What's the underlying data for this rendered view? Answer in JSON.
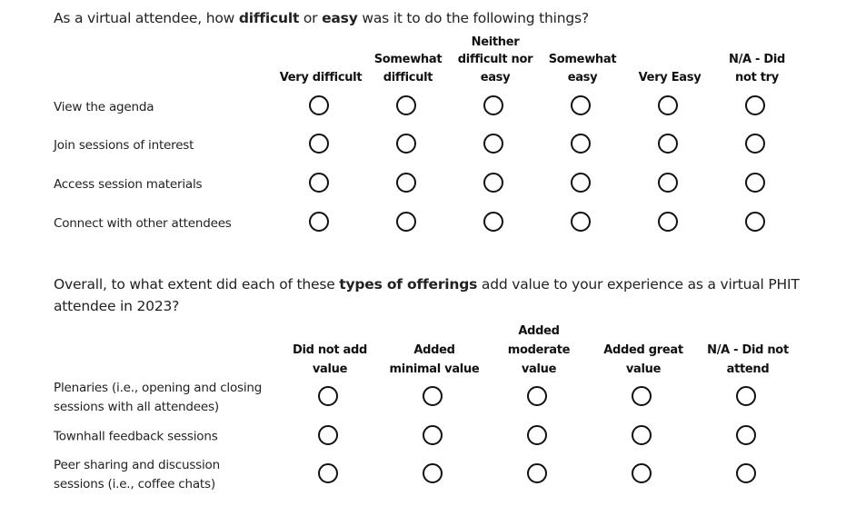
{
  "q1": {
    "text_before": "As a virtual attendee, how ",
    "bold1": "difficult",
    "text_mid": " or ",
    "bold2": "easy",
    "text_after": " was it to do the following things?",
    "columns": [
      [
        "Very difficult"
      ],
      [
        "Somewhat",
        "difficult"
      ],
      [
        "Neither",
        "difficult nor",
        "easy"
      ],
      [
        "Somewhat",
        "easy"
      ],
      [
        "Very Easy"
      ],
      [
        "N/A - Did",
        "not try"
      ]
    ],
    "rows": [
      "View the agenda",
      "Join sessions of interest",
      "Access session materials",
      "Connect with other attendees"
    ]
  },
  "q2": {
    "text_before": "Overall, to what extent did each of these ",
    "bold1": "types of offerings",
    "text_after": " add value to your experience as a virtual PHIT attendee in 2023?",
    "columns": [
      [
        "Did not add",
        "value"
      ],
      [
        "Added",
        "minimal value"
      ],
      [
        "Added",
        "moderate",
        "value"
      ],
      [
        "Added great",
        "value"
      ],
      [
        "N/A - Did not",
        "attend"
      ]
    ],
    "rows": [
      [
        "Plenaries (i.e., opening and closing",
        "sessions with all attendees)"
      ],
      [
        "Townhall feedback sessions"
      ],
      [
        "Peer sharing and discussion",
        "sessions (i.e., coffee chats)"
      ]
    ]
  }
}
